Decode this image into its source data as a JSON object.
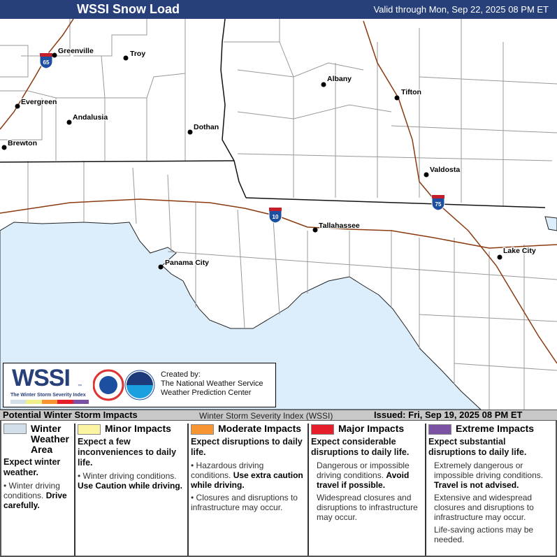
{
  "header": {
    "title": "WSSI Snow Load",
    "valid": "Valid through Mon, Sep 22, 2025 08 PM ET"
  },
  "colors": {
    "header": "#27407a",
    "water": "#dcedfb",
    "winter": "#d3dfe8",
    "minor": "#fbf4a0",
    "moderate": "#f69531",
    "major": "#e51e2a",
    "extreme": "#7b52a3",
    "interstate": "#8b3a0f"
  },
  "map": {
    "cities": [
      {
        "name": "Greenville"
      },
      {
        "name": "Troy"
      },
      {
        "name": "Evergreen"
      },
      {
        "name": "Andalusia"
      },
      {
        "name": "Dothan"
      },
      {
        "name": "Brewton"
      },
      {
        "name": "Albany"
      },
      {
        "name": "Tifton"
      },
      {
        "name": "Valdosta"
      },
      {
        "name": "Tallahassee"
      },
      {
        "name": "Panama City"
      },
      {
        "name": "Lake City"
      }
    ],
    "interstates": [
      "65",
      "10",
      "75"
    ]
  },
  "logo": {
    "wssi": "WSSI",
    "subtitle": "The Winter Storm Severity Index",
    "tm": "™",
    "created": "Created by:",
    "org1": "The National Weather Service",
    "org2": "Weather Prediction Center"
  },
  "legend_header": {
    "title": "Potential Winter Storm Impacts",
    "index": "Winter Storm Severity Index (WSSI)",
    "issued": "Issued: Fri, Sep 19, 2025 08 PM ET"
  },
  "legend": [
    {
      "title": "Winter Weather Area",
      "expect": "Expect winter weather.",
      "b1": "Winter driving conditions. ",
      "b1s": "Drive carefully."
    },
    {
      "title": "Minor Impacts",
      "expect": "Expect a few inconveniences to daily life.",
      "b1": "Winter driving conditions. ",
      "b1s": "Use Caution while driving."
    },
    {
      "title": "Moderate Impacts",
      "expect": "Expect disruptions to daily life.",
      "b1": "Hazardous driving conditions. ",
      "b1s": "Use extra caution while driving.",
      "b2": "Closures and disruptions to infrastructure may occur."
    },
    {
      "title": "Major Impacts",
      "expect": "Expect considerable disruptions to daily life.",
      "b1": "Dangerous or impossible driving conditions. ",
      "b1s": "Avoid travel if possible.",
      "b2": "Widespread closures and disruptions to infrastructure may occur."
    },
    {
      "title": "Extreme Impacts",
      "expect": "Expect substantial disruptions to daily life.",
      "b1": "Extremely dangerous or impossible driving conditions. ",
      "b1s": "Travel is not advised.",
      "b2": "Extensive and widespread closures and disruptions to infrastructure may occur.",
      "b3": "Life-saving actions may be needed."
    }
  ]
}
